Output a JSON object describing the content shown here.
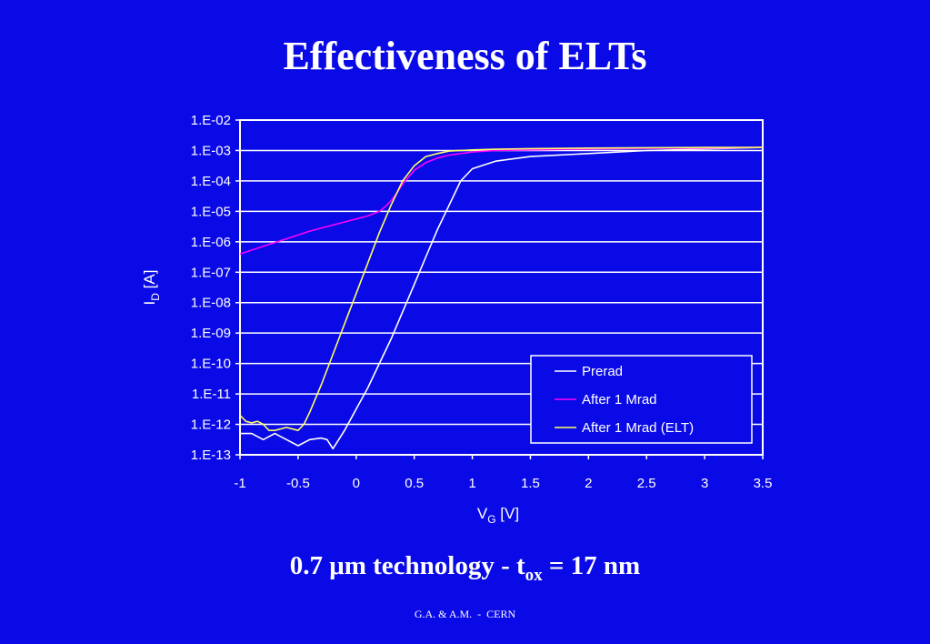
{
  "slide": {
    "title": "Effectiveness of ELTs",
    "subtitle": {
      "prefix": "0.7 μm technology - t",
      "sub": "ox",
      "suffix": " = 17 nm"
    },
    "footer": "G.A. & A.M.  -  CERN",
    "background_color": "#0A0AE6"
  },
  "chart_data": {
    "type": "line",
    "title": "",
    "xlabel": {
      "main": "V",
      "sub": "G",
      "rest": " [V]"
    },
    "ylabel": {
      "main": "I",
      "sub": "D",
      "rest": " [A]"
    },
    "x_range": [
      -1,
      3.5
    ],
    "x_ticks": [
      -1,
      -0.5,
      0,
      0.5,
      1,
      1.5,
      2,
      2.5,
      3,
      3.5
    ],
    "y_scale": "log",
    "y_range_exp": [
      -13,
      -2
    ],
    "y_tick_labels": [
      "1.E-02",
      "1.E-03",
      "1.E-04",
      "1.E-05",
      "1.E-06",
      "1.E-07",
      "1.E-08",
      "1.E-09",
      "1.E-10",
      "1.E-11",
      "1.E-12",
      "1.E-13"
    ],
    "grid": "horizontal",
    "legend_position": "bottom-right",
    "series": [
      {
        "name": "Prerad",
        "color": "#FFFFFF",
        "x": [
          -1,
          -0.9,
          -0.8,
          -0.7,
          -0.6,
          -0.5,
          -0.4,
          -0.3,
          -0.25,
          -0.2,
          -0.15,
          -0.1,
          0,
          0.1,
          0.2,
          0.3,
          0.4,
          0.5,
          0.6,
          0.7,
          0.8,
          0.9,
          1,
          1.2,
          1.5,
          2,
          2.5,
          3,
          3.5
        ],
        "y": [
          -12.3,
          -12.3,
          -12.5,
          -12.3,
          -12.5,
          -12.7,
          -12.5,
          -12.45,
          -12.5,
          -12.8,
          -12.5,
          -12.2,
          -11.5,
          -10.8,
          -10.0,
          -9.2,
          -8.3,
          -7.4,
          -6.5,
          -5.6,
          -4.8,
          -4.0,
          -3.6,
          -3.35,
          -3.2,
          -3.1,
          -3.0,
          -2.95,
          -2.9
        ]
      },
      {
        "name": "After 1 Mrad",
        "color": "#FF00FF",
        "x": [
          -1,
          -0.8,
          -0.6,
          -0.4,
          -0.2,
          0,
          0.1,
          0.2,
          0.25,
          0.3,
          0.35,
          0.4,
          0.5,
          0.6,
          0.7,
          0.8,
          1,
          1.2,
          1.5,
          2,
          2.5,
          3,
          3.5
        ],
        "y": [
          -6.4,
          -6.15,
          -5.9,
          -5.65,
          -5.45,
          -5.25,
          -5.15,
          -5.0,
          -4.85,
          -4.65,
          -4.4,
          -4.1,
          -3.65,
          -3.4,
          -3.25,
          -3.15,
          -3.05,
          -3.0,
          -2.98,
          -2.95,
          -2.93,
          -2.92,
          -2.9
        ]
      },
      {
        "name": "After 1 Mrad (ELT)",
        "color": "#FFFF66",
        "x": [
          -1,
          -0.95,
          -0.9,
          -0.85,
          -0.8,
          -0.75,
          -0.7,
          -0.6,
          -0.5,
          -0.45,
          -0.4,
          -0.3,
          -0.2,
          -0.1,
          0,
          0.1,
          0.2,
          0.3,
          0.4,
          0.5,
          0.6,
          0.7,
          0.8,
          1,
          1.2,
          1.5,
          2,
          2.5,
          3,
          3.5
        ],
        "y": [
          -11.7,
          -11.9,
          -11.95,
          -11.9,
          -12.0,
          -12.2,
          -12.2,
          -12.1,
          -12.2,
          -12.0,
          -11.6,
          -10.7,
          -9.7,
          -8.7,
          -7.7,
          -6.7,
          -5.7,
          -4.8,
          -4.0,
          -3.5,
          -3.2,
          -3.1,
          -3.02,
          -2.98,
          -2.96,
          -2.94,
          -2.92,
          -2.91,
          -2.9,
          -2.9
        ]
      }
    ]
  }
}
